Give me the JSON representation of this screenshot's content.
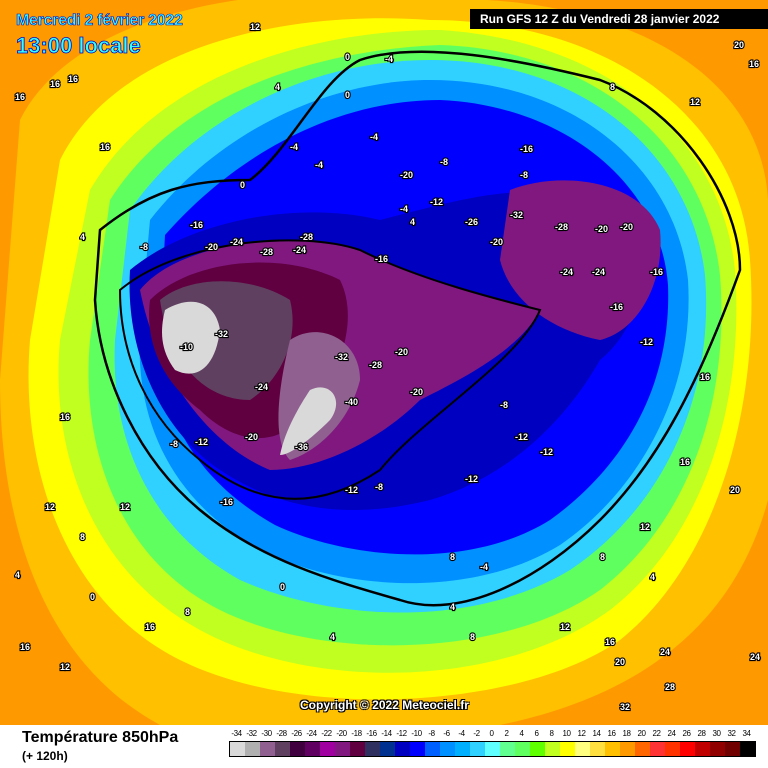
{
  "header": {
    "valid_date": "Mercredi 2 février 2022",
    "valid_time": "13:00 locale",
    "run_info": "Run GFS 12 Z du Vendredi 28 janvier 2022"
  },
  "map": {
    "copyright": "Copyright © 2022 Meteociel.fr",
    "contour_labels": [
      "16",
      "16",
      "16",
      "12",
      "4",
      "4",
      "20",
      "16",
      "12",
      "8",
      "0",
      "-4",
      "-4",
      "0",
      "-4",
      "4",
      "-8",
      "-16",
      "-24",
      "-28",
      "-28",
      "-24",
      "-20",
      "-10",
      "-32",
      "-32",
      "-28",
      "-24",
      "-20",
      "-40",
      "-36",
      "-20",
      "-16",
      "-12",
      "-8",
      "-12",
      "-8",
      "-16",
      "-20",
      "-26",
      "-20",
      "-32",
      "-28",
      "-20",
      "-24",
      "-24",
      "-20",
      "-16",
      "-12",
      "-16",
      "-20",
      "-16",
      "-12",
      "-8",
      "-4",
      "-12",
      "-12",
      "-12",
      "-8",
      "-4",
      "0",
      "4",
      "8",
      "12",
      "16",
      "20",
      "24",
      "28",
      "32",
      "24",
      "20",
      "16",
      "12",
      "8",
      "4",
      "0",
      "-4",
      "-8",
      "8",
      "12",
      "16",
      "12",
      "8",
      "4",
      "0",
      "12",
      "16",
      "16",
      "4",
      "8",
      "16",
      "16"
    ],
    "label_color": "#ffffff"
  },
  "footer": {
    "parameter": "Température 850hPa",
    "lead_time": "(+ 120h)"
  },
  "legend": {
    "ticks": [
      "-34",
      "-32",
      "-30",
      "-28",
      "-26",
      "-24",
      "-22",
      "-20",
      "-18",
      "-16",
      "-14",
      "-12",
      "-10",
      "-8",
      "-6",
      "-4",
      "-2",
      "0",
      "2",
      "4",
      "6",
      "8",
      "10",
      "12",
      "14",
      "16",
      "18",
      "20",
      "22",
      "24",
      "26",
      "28",
      "30",
      "32",
      "34"
    ],
    "colors": [
      "#d9d9d9",
      "#b0b0b0",
      "#906090",
      "#604060",
      "#400040",
      "#600060",
      "#a000a0",
      "#801880",
      "#600040",
      "#303060",
      "#003090",
      "#0000c0",
      "#0000ff",
      "#0060ff",
      "#0090ff",
      "#00b0ff",
      "#30d0ff",
      "#60ffff",
      "#60ff90",
      "#60ff60",
      "#60ff00",
      "#c0ff20",
      "#ffff00",
      "#ffff80",
      "#ffe040",
      "#ffc000",
      "#ff9900",
      "#ff6600",
      "#ff3333",
      "#ff3300",
      "#ff0000",
      "#c00000",
      "#900000",
      "#700000",
      "#000000"
    ]
  }
}
